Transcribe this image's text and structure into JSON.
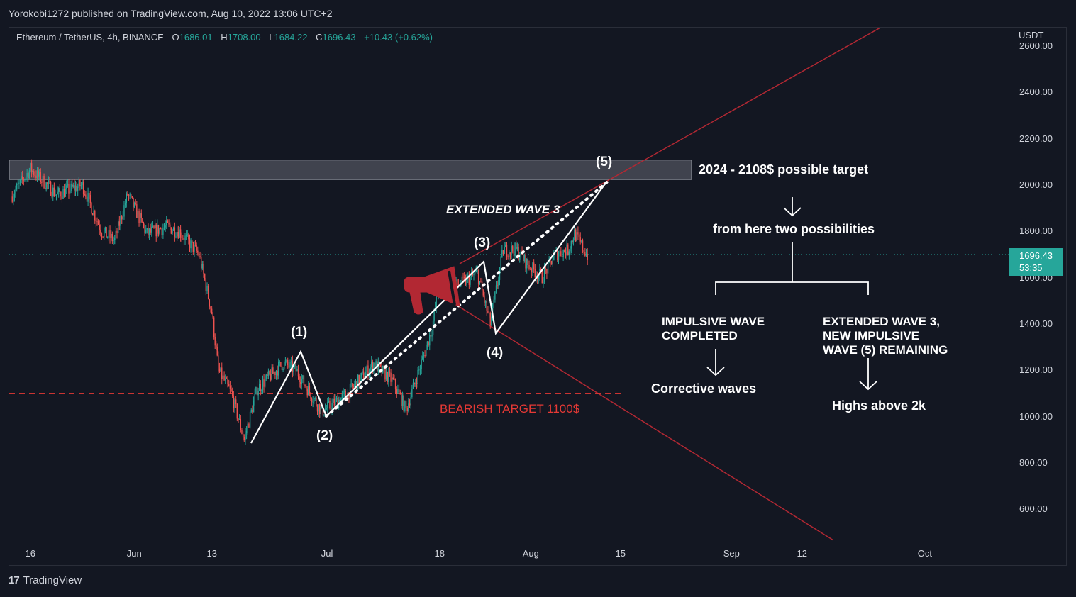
{
  "publisher_line": "Yorokobi1272 published on TradingView.com, Aug 10, 2022 13:06 UTC+2",
  "header": {
    "symbol": "Ethereum / TetherUS, 4h, BINANCE",
    "open_label": "O",
    "open_value": "1686.01",
    "high_label": "H",
    "high_value": "1708.00",
    "low_label": "L",
    "low_value": "1684.22",
    "close_label": "C",
    "close_value": "1696.43",
    "change": "+10.43 (+0.62%)"
  },
  "currency": "USDT",
  "last_price": {
    "price": "1696.43",
    "countdown": "53:35"
  },
  "footer_logo": "TradingView",
  "colors": {
    "bg": "#131722",
    "up": "#26a69a",
    "down": "#ef5350",
    "trend": "#b22833",
    "annotation": "#ffffff",
    "bearish": "#e53935"
  },
  "chart_data": {
    "type": "candlestick",
    "title": "Ethereum / TetherUS, 4h, BINANCE",
    "ylabel": "USDT",
    "ylim": [
      480,
      2660
    ],
    "y_ticks": [
      "2600.00",
      "2400.00",
      "2200.00",
      "2000.00",
      "1800.00",
      "1600.00",
      "1400.00",
      "1200.00",
      "1000.00",
      "800.00",
      "600.00"
    ],
    "x_ticks": [
      "16",
      "Jun",
      "13",
      "Jul",
      "18",
      "Aug",
      "15",
      "Sep",
      "12",
      "Oct"
    ],
    "price_path": [
      {
        "date": "2022-05-13",
        "price": 1950
      },
      {
        "date": "2022-05-16",
        "price": 2070
      },
      {
        "date": "2022-05-20",
        "price": 1960
      },
      {
        "date": "2022-05-24",
        "price": 2000
      },
      {
        "date": "2022-05-27",
        "price": 1800
      },
      {
        "date": "2022-05-29",
        "price": 1760
      },
      {
        "date": "2022-05-31",
        "price": 1960
      },
      {
        "date": "2022-06-03",
        "price": 1790
      },
      {
        "date": "2022-06-06",
        "price": 1820
      },
      {
        "date": "2022-06-08",
        "price": 1800
      },
      {
        "date": "2022-06-11",
        "price": 1700
      },
      {
        "date": "2022-06-13",
        "price": 1450
      },
      {
        "date": "2022-06-14",
        "price": 1200
      },
      {
        "date": "2022-06-16",
        "price": 1100
      },
      {
        "date": "2022-06-18",
        "price": 900
      },
      {
        "date": "2022-06-20",
        "price": 1120
      },
      {
        "date": "2022-06-24",
        "price": 1230
      },
      {
        "date": "2022-06-26",
        "price": 1200
      },
      {
        "date": "2022-06-30",
        "price": 1020
      },
      {
        "date": "2022-07-04",
        "price": 1100
      },
      {
        "date": "2022-07-08",
        "price": 1230
      },
      {
        "date": "2022-07-11",
        "price": 1150
      },
      {
        "date": "2022-07-13",
        "price": 1030
      },
      {
        "date": "2022-07-15",
        "price": 1200
      },
      {
        "date": "2022-07-17",
        "price": 1380
      },
      {
        "date": "2022-07-18",
        "price": 1560
      },
      {
        "date": "2022-07-20",
        "price": 1560
      },
      {
        "date": "2022-07-22",
        "price": 1580
      },
      {
        "date": "2022-07-24",
        "price": 1620
      },
      {
        "date": "2022-07-26",
        "price": 1400
      },
      {
        "date": "2022-07-28",
        "price": 1720
      },
      {
        "date": "2022-07-30",
        "price": 1720
      },
      {
        "date": "2022-08-01",
        "price": 1650
      },
      {
        "date": "2022-08-03",
        "price": 1600
      },
      {
        "date": "2022-08-05",
        "price": 1700
      },
      {
        "date": "2022-08-07",
        "price": 1720
      },
      {
        "date": "2022-08-08",
        "price": 1790
      },
      {
        "date": "2022-08-10",
        "price": 1696
      }
    ],
    "target_zone": {
      "low": 2024,
      "high": 2108
    },
    "bearish_target": 1100,
    "wave_points": [
      {
        "label": "",
        "date": "2022-06-18",
        "price": 880
      },
      {
        "label": "(1)",
        "date": "2022-06-26",
        "price": 1280
      },
      {
        "label": "(2)",
        "date": "2022-06-30",
        "price": 1000
      },
      {
        "label": "(3)",
        "date": "2022-07-24",
        "price": 1670
      },
      {
        "label": "(4)",
        "date": "2022-07-26",
        "price": 1360
      },
      {
        "label": "(5)",
        "date": "2022-08-13",
        "price": 2010
      }
    ]
  },
  "annotations": {
    "wave1": "(1)",
    "wave2": "(2)",
    "wave3": "(3)",
    "wave4": "(4)",
    "wave5": "(5)",
    "extended_wave": "EXTENDED WAVE 3",
    "bearish_target": "BEARISH TARGET 1100$",
    "target": "2024 - 2108$ possible target",
    "two_possibilities": "from here two possibilities",
    "left_branch_line1": "IMPULSIVE WAVE",
    "left_branch_line2": "COMPLETED",
    "left_result": "Corrective waves",
    "right_branch_line1": "EXTENDED WAVE 3,",
    "right_branch_line2": "NEW IMPULSIVE",
    "right_branch_line3": "WAVE (5) REMAINING",
    "right_result": "Highs above 2k"
  }
}
